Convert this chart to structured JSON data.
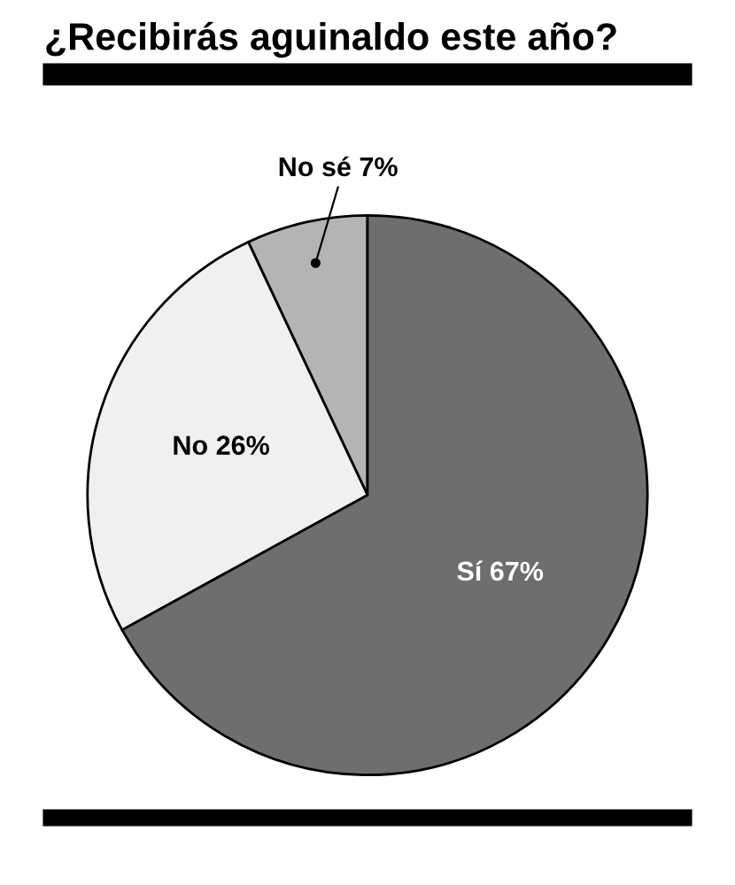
{
  "chart_data": {
    "type": "pie",
    "title": "¿Recibirás aguinaldo este año?",
    "categories": [
      "No sé",
      "No",
      "Sí"
    ],
    "values": [
      7,
      26,
      67
    ],
    "value_labels": [
      "7%",
      "26%",
      "67%"
    ],
    "colors": [
      "#b4b4b4",
      "#f0f0f0",
      "#6e6e6e"
    ]
  }
}
